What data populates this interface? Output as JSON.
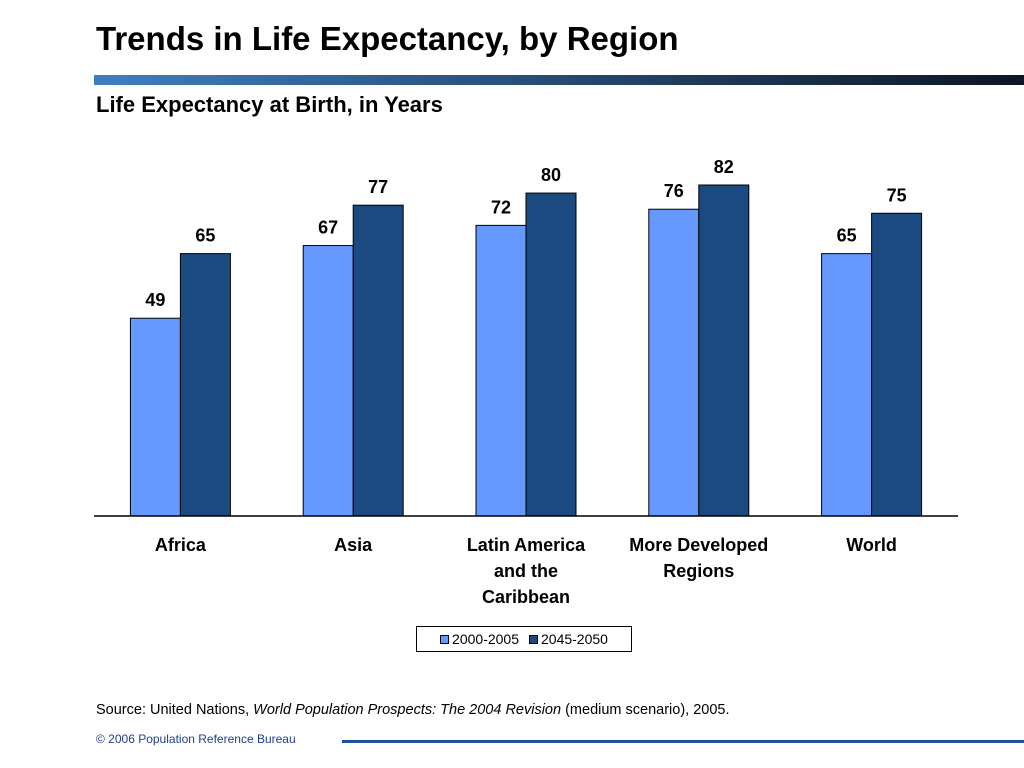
{
  "title": "Trends in Life Expectancy, by Region",
  "colors": {
    "series_2000": "#6699ff",
    "series_2045": "#1b4a80",
    "rule_start": "#3f7fc0",
    "rule_end": "#0d1523",
    "footer_rule": "#1f4f9a"
  },
  "chart_data": {
    "type": "bar",
    "title": "Life Expectancy at Birth, in Years",
    "categories": [
      [
        "Africa"
      ],
      [
        "Asia"
      ],
      [
        "Latin America",
        "and the",
        "Caribbean"
      ],
      [
        "More Developed",
        "Regions"
      ],
      [
        "World"
      ]
    ],
    "series": [
      {
        "name": "2000-2005",
        "values": [
          49,
          67,
          72,
          76,
          65
        ]
      },
      {
        "name": "2045-2050",
        "values": [
          65,
          77,
          80,
          82,
          75
        ]
      }
    ],
    "ylim": [
      0,
      82
    ],
    "grid": false,
    "legend_position": "bottom-center"
  },
  "source": {
    "prefix": "Source: United Nations,",
    "title": "World Population Prospects: The 2004 Revision",
    "suffix": "(medium scenario), 2005."
  },
  "footer": "© 2006 Population Reference Bureau"
}
